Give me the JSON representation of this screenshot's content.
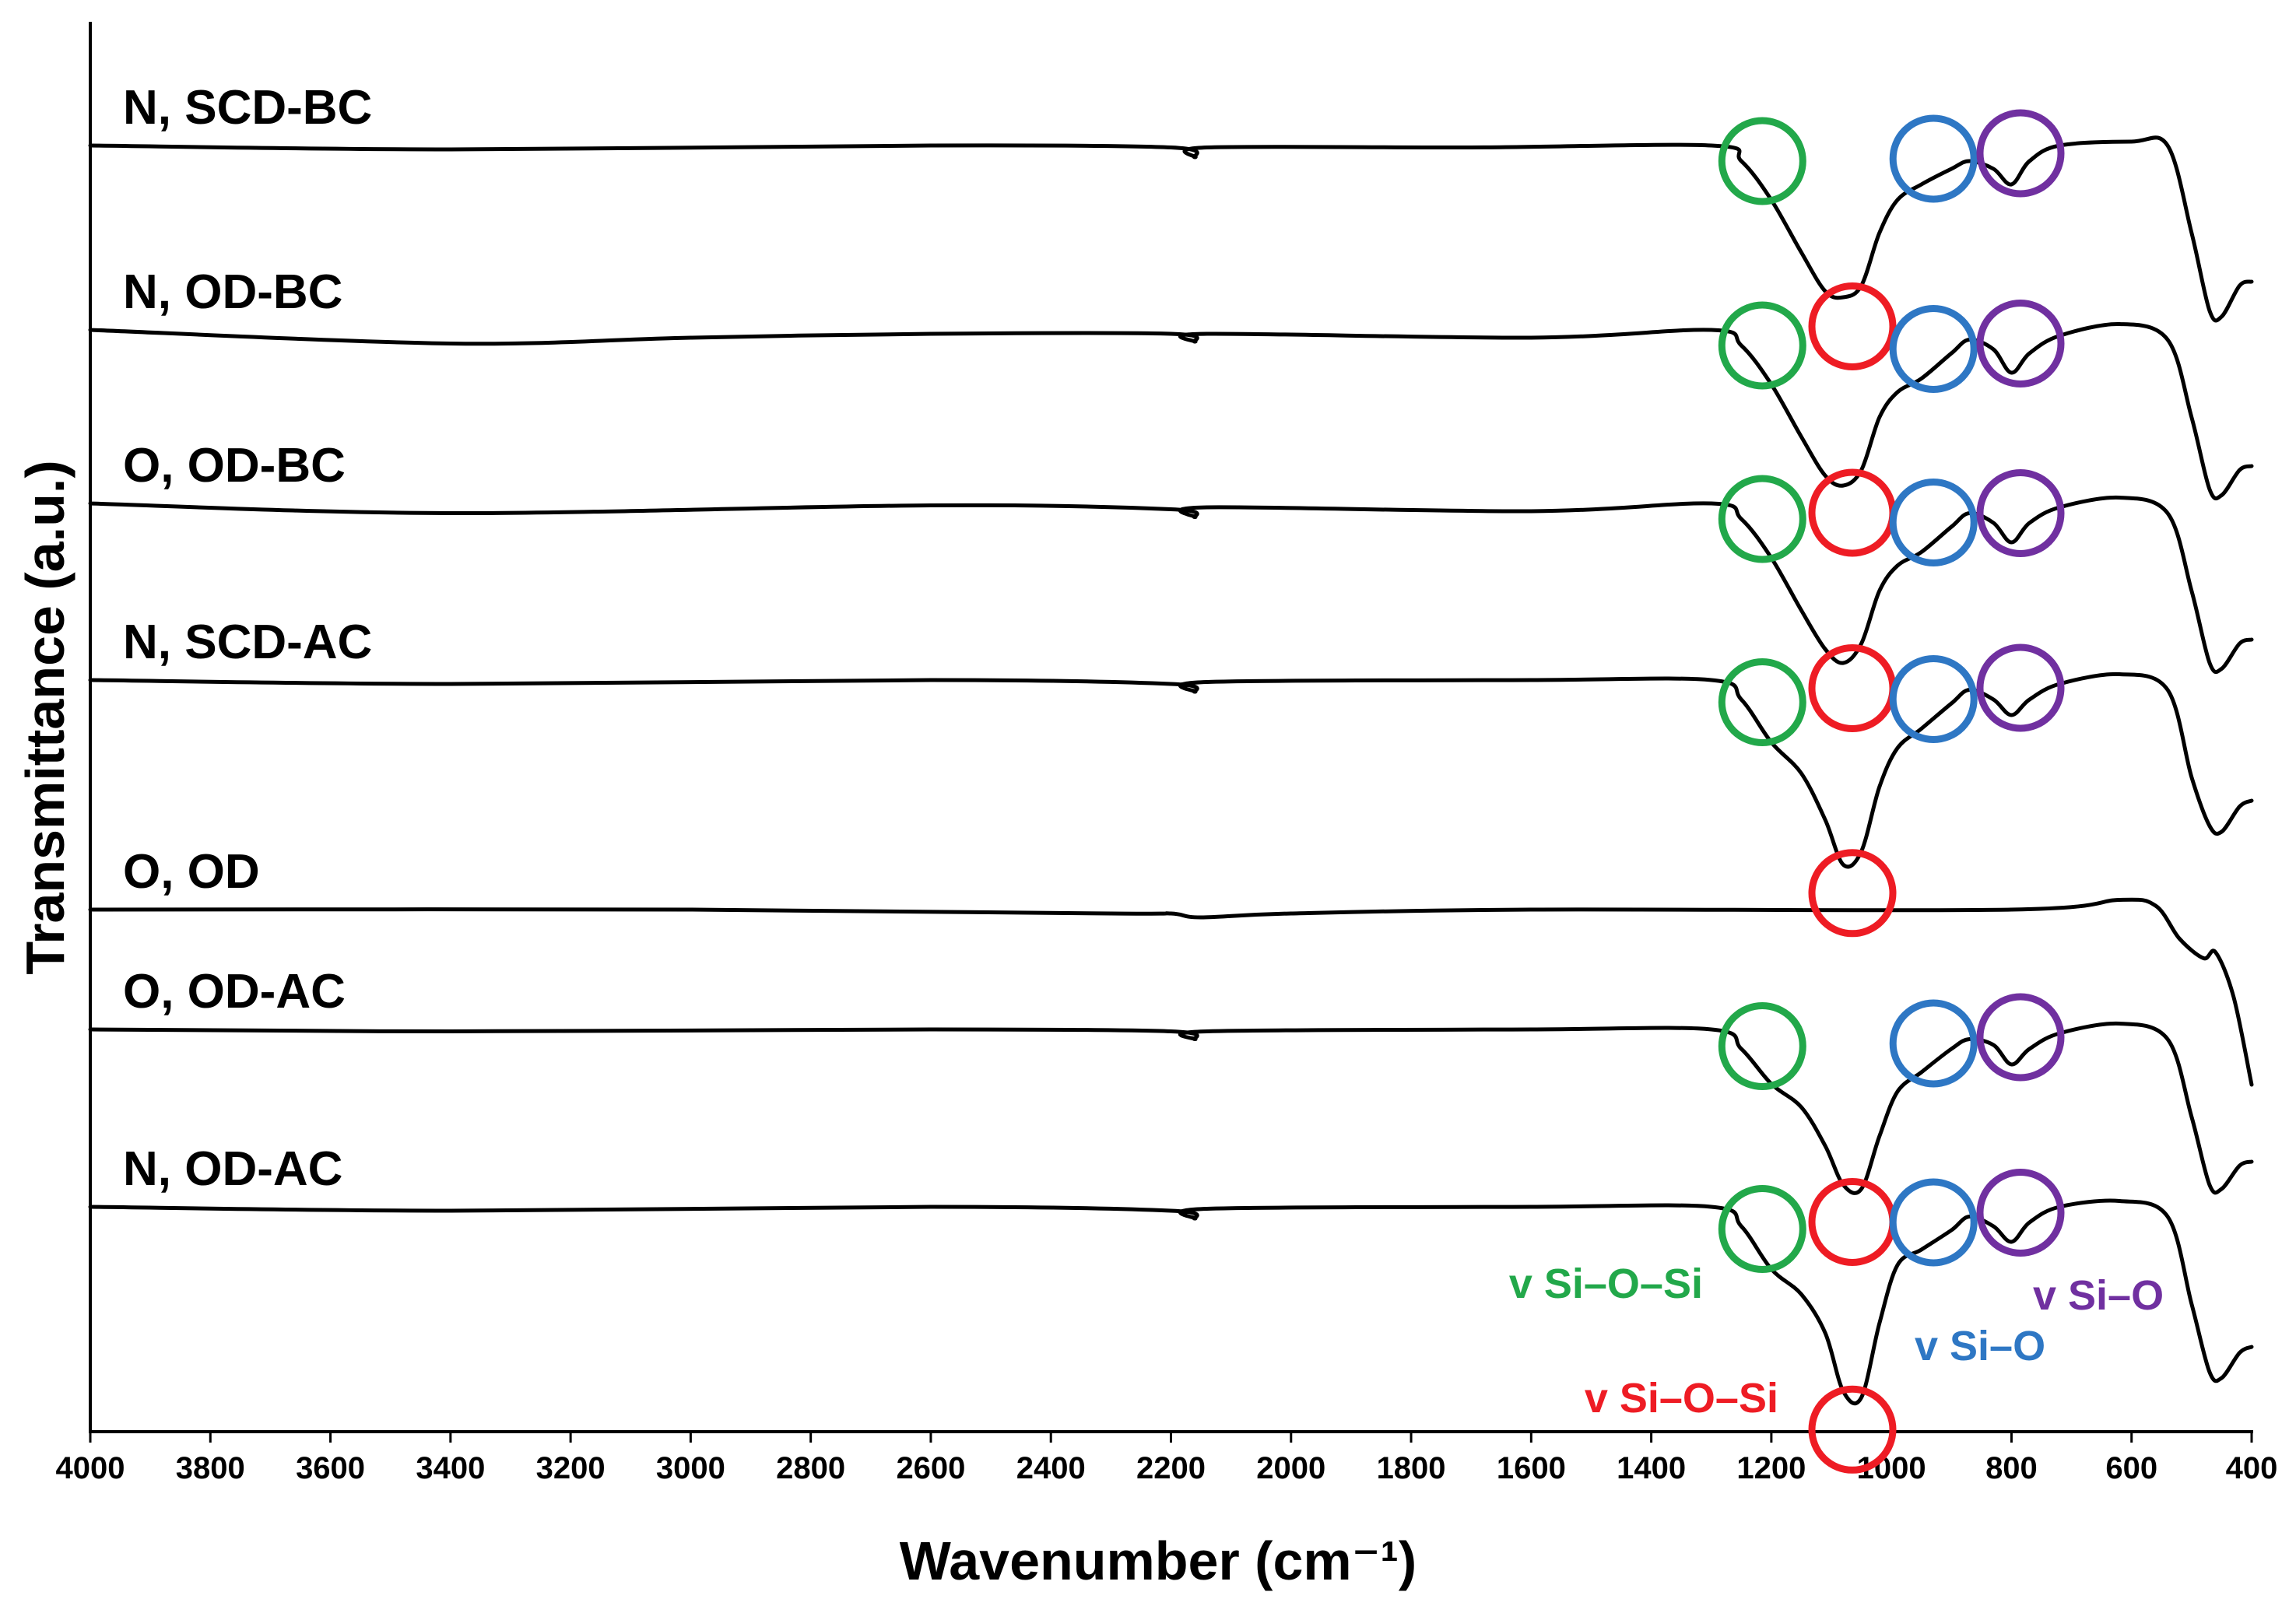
{
  "chart_data": {
    "type": "line",
    "title": "",
    "xlabel": "Wavenumber (cm⁻¹)",
    "ylabel": "Transmittance (a.u.)",
    "xlim": [
      4000,
      400
    ],
    "x_reversed": true,
    "x_ticks": [
      4000,
      3800,
      3600,
      3400,
      3200,
      3000,
      2800,
      2600,
      2400,
      2200,
      2000,
      1800,
      1600,
      1400,
      1200,
      1000,
      800,
      600,
      400
    ],
    "y_ticks_shown": false,
    "y_units": "normalized transmittance, each spectrum vertically offset (0 = top band, larger = lower on plot)",
    "series": [
      {
        "name": "N, SCD-BC",
        "offset": 0,
        "points": [
          [
            4000,
            0.0
          ],
          [
            3400,
            0.02
          ],
          [
            2600,
            0.0
          ],
          [
            2200,
            0.01
          ],
          [
            2160,
            0.06
          ],
          [
            2140,
            0.01
          ],
          [
            1700,
            0.01
          ],
          [
            1300,
            0.0
          ],
          [
            1250,
            0.08
          ],
          [
            1200,
            0.28
          ],
          [
            1150,
            0.55
          ],
          [
            1110,
            0.75
          ],
          [
            1080,
            0.78
          ],
          [
            1050,
            0.72
          ],
          [
            1020,
            0.45
          ],
          [
            990,
            0.28
          ],
          [
            950,
            0.2
          ],
          [
            900,
            0.12
          ],
          [
            870,
            0.08
          ],
          [
            830,
            0.12
          ],
          [
            800,
            0.2
          ],
          [
            770,
            0.08
          ],
          [
            720,
            0.0
          ],
          [
            600,
            -0.02
          ],
          [
            540,
            0.0
          ],
          [
            500,
            0.45
          ],
          [
            470,
            0.85
          ],
          [
            450,
            0.88
          ],
          [
            420,
            0.72
          ],
          [
            400,
            0.7
          ]
        ]
      },
      {
        "name": "N, OD-BC",
        "offset": 1,
        "points": [
          [
            4000,
            0.0
          ],
          [
            3400,
            0.07
          ],
          [
            3000,
            0.04
          ],
          [
            2600,
            0.02
          ],
          [
            2200,
            0.02
          ],
          [
            2160,
            0.06
          ],
          [
            2140,
            0.02
          ],
          [
            1600,
            0.04
          ],
          [
            1300,
            0.0
          ],
          [
            1250,
            0.08
          ],
          [
            1200,
            0.28
          ],
          [
            1150,
            0.55
          ],
          [
            1110,
            0.75
          ],
          [
            1080,
            0.8
          ],
          [
            1050,
            0.72
          ],
          [
            1020,
            0.45
          ],
          [
            990,
            0.32
          ],
          [
            950,
            0.25
          ],
          [
            900,
            0.12
          ],
          [
            870,
            0.05
          ],
          [
            830,
            0.1
          ],
          [
            800,
            0.22
          ],
          [
            770,
            0.12
          ],
          [
            720,
            0.03
          ],
          [
            620,
            -0.03
          ],
          [
            540,
            0.05
          ],
          [
            500,
            0.45
          ],
          [
            470,
            0.82
          ],
          [
            450,
            0.85
          ],
          [
            420,
            0.72
          ],
          [
            400,
            0.7
          ]
        ]
      },
      {
        "name": "O, OD-BC",
        "offset": 2,
        "points": [
          [
            4000,
            0.0
          ],
          [
            3400,
            0.05
          ],
          [
            2600,
            0.01
          ],
          [
            2200,
            0.03
          ],
          [
            2160,
            0.07
          ],
          [
            2140,
            0.02
          ],
          [
            1600,
            0.04
          ],
          [
            1300,
            0.0
          ],
          [
            1250,
            0.08
          ],
          [
            1200,
            0.28
          ],
          [
            1150,
            0.55
          ],
          [
            1110,
            0.75
          ],
          [
            1080,
            0.82
          ],
          [
            1050,
            0.72
          ],
          [
            1020,
            0.45
          ],
          [
            990,
            0.32
          ],
          [
            950,
            0.25
          ],
          [
            900,
            0.12
          ],
          [
            870,
            0.05
          ],
          [
            830,
            0.1
          ],
          [
            800,
            0.2
          ],
          [
            770,
            0.1
          ],
          [
            720,
            0.02
          ],
          [
            620,
            -0.03
          ],
          [
            540,
            0.05
          ],
          [
            500,
            0.45
          ],
          [
            470,
            0.82
          ],
          [
            450,
            0.85
          ],
          [
            420,
            0.72
          ],
          [
            400,
            0.7
          ]
        ]
      },
      {
        "name": "N, SCD-AC",
        "offset": 3,
        "points": [
          [
            4000,
            0.0
          ],
          [
            3400,
            0.02
          ],
          [
            2600,
            0.0
          ],
          [
            2200,
            0.02
          ],
          [
            2160,
            0.06
          ],
          [
            2140,
            0.01
          ],
          [
            1600,
            0.0
          ],
          [
            1300,
            0.0
          ],
          [
            1250,
            0.1
          ],
          [
            1200,
            0.32
          ],
          [
            1150,
            0.48
          ],
          [
            1110,
            0.72
          ],
          [
            1080,
            0.95
          ],
          [
            1050,
            0.88
          ],
          [
            1020,
            0.55
          ],
          [
            990,
            0.35
          ],
          [
            950,
            0.25
          ],
          [
            900,
            0.12
          ],
          [
            870,
            0.05
          ],
          [
            830,
            0.1
          ],
          [
            800,
            0.18
          ],
          [
            770,
            0.1
          ],
          [
            720,
            0.02
          ],
          [
            620,
            -0.03
          ],
          [
            540,
            0.05
          ],
          [
            500,
            0.5
          ],
          [
            470,
            0.75
          ],
          [
            450,
            0.78
          ],
          [
            420,
            0.65
          ],
          [
            400,
            0.62
          ]
        ]
      },
      {
        "name": "O, OD",
        "offset": 4,
        "points": [
          [
            4000,
            0.0
          ],
          [
            3000,
            0.0
          ],
          [
            2300,
            0.02
          ],
          [
            2200,
            0.02
          ],
          [
            2150,
            0.04
          ],
          [
            2000,
            0.02
          ],
          [
            1600,
            0.0
          ],
          [
            800,
            0.0
          ],
          [
            620,
            -0.05
          ],
          [
            560,
            -0.02
          ],
          [
            520,
            0.15
          ],
          [
            480,
            0.25
          ],
          [
            460,
            0.22
          ],
          [
            430,
            0.45
          ],
          [
            400,
            0.9
          ]
        ]
      },
      {
        "name": "O, OD-AC",
        "offset": 5,
        "points": [
          [
            4000,
            0.0
          ],
          [
            3400,
            0.01
          ],
          [
            2600,
            0.0
          ],
          [
            2200,
            0.01
          ],
          [
            2160,
            0.05
          ],
          [
            2140,
            0.01
          ],
          [
            1600,
            0.0
          ],
          [
            1300,
            0.0
          ],
          [
            1250,
            0.1
          ],
          [
            1200,
            0.28
          ],
          [
            1150,
            0.4
          ],
          [
            1110,
            0.6
          ],
          [
            1080,
            0.8
          ],
          [
            1050,
            0.82
          ],
          [
            1020,
            0.55
          ],
          [
            990,
            0.32
          ],
          [
            950,
            0.22
          ],
          [
            900,
            0.1
          ],
          [
            870,
            0.05
          ],
          [
            830,
            0.08
          ],
          [
            800,
            0.18
          ],
          [
            770,
            0.1
          ],
          [
            720,
            0.02
          ],
          [
            620,
            -0.03
          ],
          [
            540,
            0.05
          ],
          [
            500,
            0.45
          ],
          [
            470,
            0.8
          ],
          [
            450,
            0.82
          ],
          [
            420,
            0.7
          ],
          [
            400,
            0.68
          ]
        ]
      },
      {
        "name": "N, OD-AC",
        "offset": 6,
        "points": [
          [
            4000,
            0.0
          ],
          [
            3400,
            0.02
          ],
          [
            2600,
            0.0
          ],
          [
            2200,
            0.02
          ],
          [
            2160,
            0.06
          ],
          [
            2140,
            0.01
          ],
          [
            1600,
            0.0
          ],
          [
            1300,
            0.0
          ],
          [
            1250,
            0.1
          ],
          [
            1200,
            0.32
          ],
          [
            1150,
            0.45
          ],
          [
            1110,
            0.65
          ],
          [
            1080,
            0.95
          ],
          [
            1050,
            0.98
          ],
          [
            1020,
            0.6
          ],
          [
            990,
            0.3
          ],
          [
            950,
            0.22
          ],
          [
            900,
            0.12
          ],
          [
            870,
            0.05
          ],
          [
            830,
            0.1
          ],
          [
            800,
            0.18
          ],
          [
            770,
            0.08
          ],
          [
            720,
            0.0
          ],
          [
            620,
            -0.03
          ],
          [
            540,
            0.05
          ],
          [
            500,
            0.5
          ],
          [
            470,
            0.85
          ],
          [
            450,
            0.88
          ],
          [
            420,
            0.75
          ],
          [
            400,
            0.72
          ]
        ]
      }
    ],
    "annotations": [
      {
        "label": "v Si–O–Si",
        "color": "#22a84a",
        "series_marked": [
          "N, SCD-BC",
          "N, OD-BC",
          "O, OD-BC",
          "N, SCD-AC",
          "O, OD-AC",
          "N, OD-AC"
        ],
        "x": 1215,
        "label_series": "N, OD-AC"
      },
      {
        "label": "v Si–O–Si",
        "color": "#ee1c24",
        "series_marked": [
          "N, SCD-BC",
          "N, OD-BC",
          "O, OD-BC",
          "N, SCD-AC",
          "O, OD-AC",
          "N, OD-AC"
        ],
        "x": 1065,
        "label_series": "N, OD-AC"
      },
      {
        "label": "v Si–O",
        "color": "#2e77c4",
        "series_marked": [
          "N, SCD-BC",
          "N, OD-BC",
          "O, OD-BC",
          "N, SCD-AC",
          "O, OD-AC",
          "N, OD-AC"
        ],
        "x": 930,
        "label_series": "N, OD-AC"
      },
      {
        "label": "v Si–O",
        "color": "#7030a0",
        "series_marked": [
          "N, SCD-BC",
          "N, OD-BC",
          "O, OD-BC",
          "N, SCD-AC",
          "O, OD-AC",
          "N, OD-AC"
        ],
        "x": 785,
        "label_series": "N, OD-AC"
      }
    ],
    "grid": false,
    "legend": "none; series labelled directly above each spectrum at top-left"
  }
}
